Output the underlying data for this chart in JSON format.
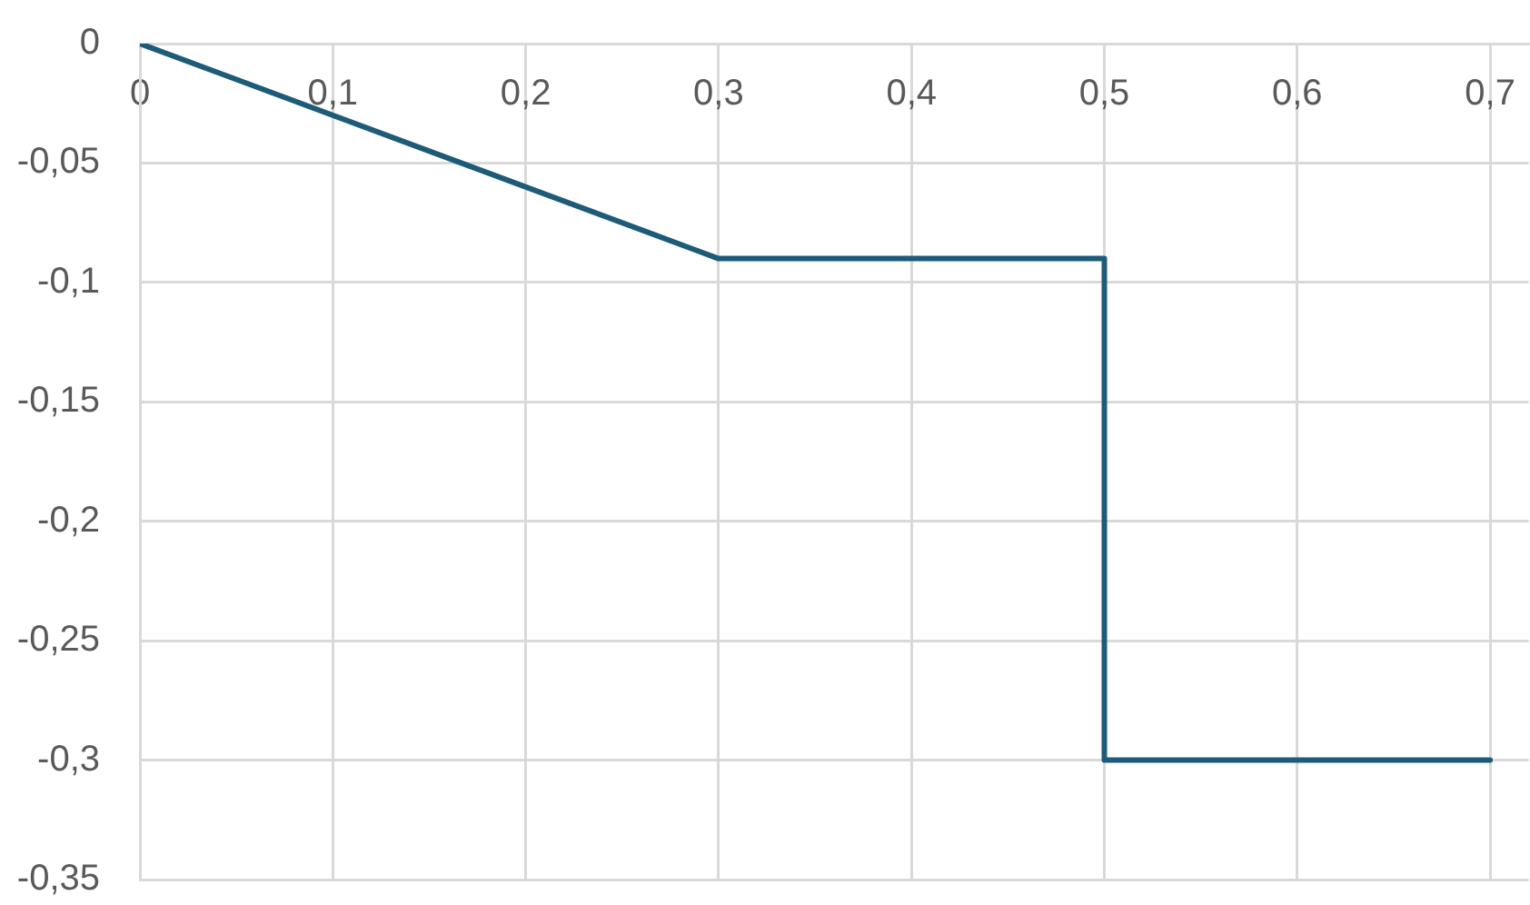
{
  "chart_data": {
    "type": "line",
    "x": [
      0,
      0.3,
      0.5,
      0.5,
      0.7
    ],
    "values": [
      0,
      -0.09,
      -0.09,
      -0.3,
      -0.3
    ],
    "color": "#1d5b79",
    "xlim": [
      0,
      0.72
    ],
    "xticks": [
      0,
      {
        "value": 0.1,
        "label": "0,1"
      },
      {
        "value": 0.2,
        "label": "0,2"
      },
      {
        "value": 0.3,
        "label": "0,3"
      },
      {
        "value": 0.4,
        "label": "0,4"
      },
      {
        "value": 0.5,
        "label": "0,5"
      },
      {
        "value": 0.6,
        "label": "0,6"
      },
      {
        "value": 0.7,
        "label": "0,7"
      }
    ],
    "ylim": [
      -0.35,
      0
    ],
    "yticks": [
      0,
      {
        "value": -0.05,
        "label": "-0,05"
      },
      {
        "value": -0.1,
        "label": "-0,1"
      },
      {
        "value": -0.15,
        "label": "-0,15"
      },
      {
        "value": -0.2,
        "label": "-0,2"
      },
      {
        "value": -0.25,
        "label": "-0,25"
      },
      {
        "value": -0.3,
        "label": "-0,3"
      },
      {
        "value": -0.35,
        "label": "-0,35"
      }
    ],
    "grid": true,
    "marker": "none",
    "line_style": "solid"
  }
}
